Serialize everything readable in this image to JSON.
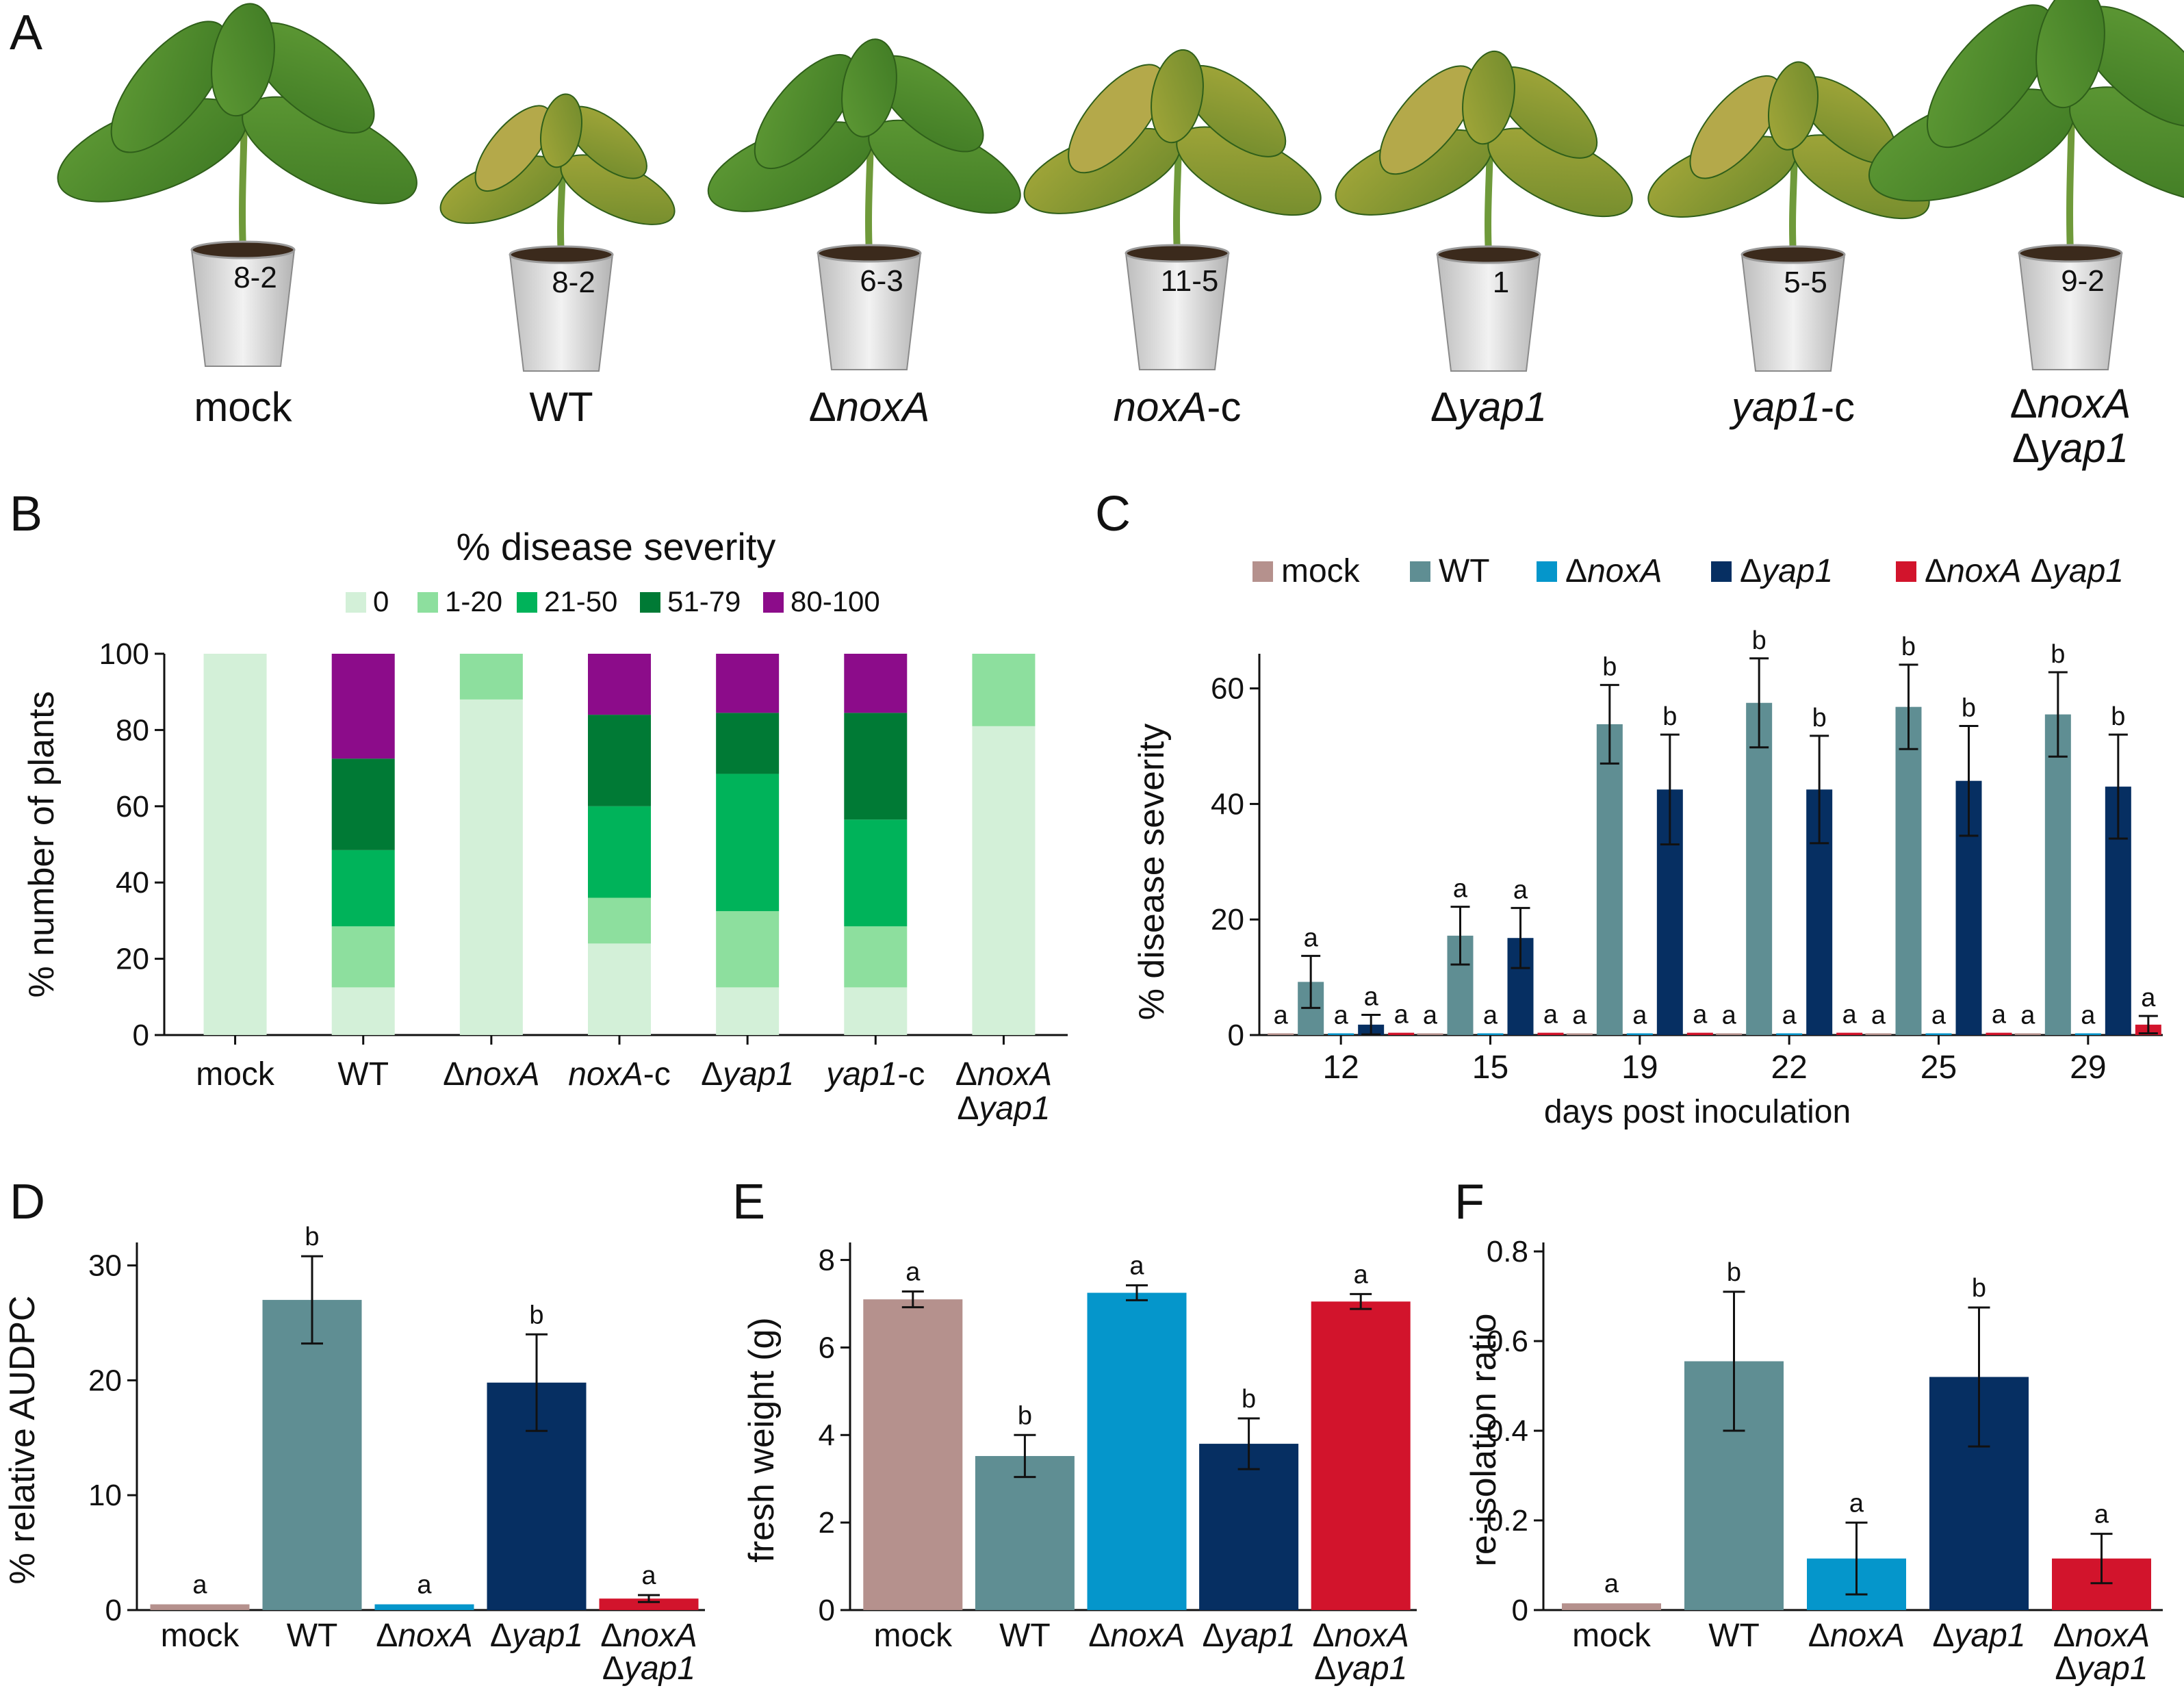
{
  "figure": {
    "panel_letters": [
      "A",
      "B",
      "C",
      "D",
      "E",
      "F"
    ]
  },
  "photo_panel": {
    "plant_labels": [
      {
        "lines": [
          [
            {
              "t": "mock",
              "i": false
            }
          ]
        ]
      },
      {
        "lines": [
          [
            {
              "t": "WT",
              "i": false
            }
          ]
        ]
      },
      {
        "lines": [
          [
            {
              "t": "Δ",
              "i": false
            },
            {
              "t": "noxA",
              "i": true
            }
          ]
        ]
      },
      {
        "lines": [
          [
            {
              "t": "noxA",
              "i": true
            },
            {
              "t": "-c",
              "i": false
            }
          ]
        ]
      },
      {
        "lines": [
          [
            {
              "t": "Δ",
              "i": false
            },
            {
              "t": "yap1",
              "i": true
            }
          ]
        ]
      },
      {
        "lines": [
          [
            {
              "t": "yap1",
              "i": true
            },
            {
              "t": "-c",
              "i": false
            }
          ]
        ]
      },
      {
        "lines": [
          [
            {
              "t": "Δ",
              "i": false
            },
            {
              "t": "noxA",
              "i": true
            }
          ],
          [
            {
              "t": "Δ",
              "i": false
            },
            {
              "t": "yap1",
              "i": true
            }
          ]
        ]
      }
    ],
    "pot_labels": [
      "8-2",
      "8-2",
      "6-3",
      "11-5",
      "1",
      "5-5",
      "9-2"
    ]
  },
  "colors": {
    "mock": "#b5918d",
    "WT": "#5f8e93",
    "noxA": "#0596cb",
    "yap1": "#062f62",
    "double": "#d2142c",
    "sev0": "#d3f0d8",
    "sev1": "#8ddf9e",
    "sev21": "#00b35a",
    "sev51": "#007a35",
    "sev80": "#8c0c8a"
  },
  "chart_data": [
    {
      "id": "B",
      "type": "bar",
      "stacked": true,
      "title": "% disease severity",
      "ylabel": "% number of plants",
      "ylim": [
        0,
        100
      ],
      "yticks": [
        0,
        20,
        40,
        60,
        80,
        100
      ],
      "categories": [
        [
          [
            {
              "t": "mock",
              "i": false
            }
          ]
        ],
        [
          [
            {
              "t": "WT",
              "i": false
            }
          ]
        ],
        [
          [
            {
              "t": "Δ",
              "i": false
            },
            {
              "t": "noxA",
              "i": true
            }
          ]
        ],
        [
          [
            {
              "t": "noxA",
              "i": true
            },
            {
              "t": "-c",
              "i": false
            }
          ]
        ],
        [
          [
            {
              "t": "Δ",
              "i": false
            },
            {
              "t": "yap1",
              "i": true
            }
          ]
        ],
        [
          [
            {
              "t": "yap1",
              "i": true
            },
            {
              "t": "-c",
              "i": false
            }
          ]
        ],
        [
          [
            {
              "t": "Δ",
              "i": false
            },
            {
              "t": "noxA",
              "i": true
            }
          ],
          [
            {
              "t": "Δ",
              "i": false
            },
            {
              "t": "yap1",
              "i": true
            }
          ]
        ]
      ],
      "series": [
        {
          "name": "0",
          "color": "#d3f0d8",
          "values": [
            100,
            12.5,
            88,
            24,
            12.5,
            12.5,
            81
          ]
        },
        {
          "name": "1-20",
          "color": "#8ddf9e",
          "values": [
            0,
            16,
            12,
            12,
            20,
            16,
            19
          ]
        },
        {
          "name": "21-50",
          "color": "#00b35a",
          "values": [
            0,
            20,
            0,
            24,
            36,
            28,
            0
          ]
        },
        {
          "name": "51-79",
          "color": "#007a35",
          "values": [
            0,
            24,
            0,
            24,
            16,
            28,
            0
          ]
        },
        {
          "name": "80-100",
          "color": "#8c0c8a",
          "values": [
            0,
            27.5,
            0,
            16,
            15.5,
            15.5,
            0
          ]
        }
      ]
    },
    {
      "id": "C",
      "type": "bar",
      "xlabel": "days post inoculation",
      "ylabel": "% disease severity",
      "ylim": [
        0,
        66
      ],
      "yticks": [
        0,
        20,
        40,
        60
      ],
      "x": [
        "12",
        "15",
        "19",
        "22",
        "25",
        "29"
      ],
      "legend": [
        [
          {
            "t": "mock",
            "i": false
          }
        ],
        [
          {
            "t": "WT",
            "i": false
          }
        ],
        [
          {
            "t": "Δ",
            "i": false
          },
          {
            "t": "noxA",
            "i": true
          }
        ],
        [
          {
            "t": "Δ",
            "i": false
          },
          {
            "t": "yap1",
            "i": true
          }
        ],
        [
          {
            "t": "Δ",
            "i": false
          },
          {
            "t": "noxA",
            "i": true
          },
          {
            "t": " Δ",
            "i": false
          },
          {
            "t": "yap1",
            "i": true
          }
        ]
      ],
      "series": [
        {
          "name": "mock",
          "color": "#b5918d",
          "values": [
            0.3,
            0.3,
            0.3,
            0.3,
            0.3,
            0.3
          ],
          "err": [
            0,
            0,
            0,
            0,
            0,
            0
          ],
          "letters": [
            "a",
            "a",
            "a",
            "a",
            "a",
            "a"
          ]
        },
        {
          "name": "WT",
          "color": "#5f8e93",
          "values": [
            9.2,
            17.2,
            53.8,
            57.5,
            56.8,
            55.5
          ],
          "err": [
            4.5,
            5.0,
            6.8,
            7.7,
            7.3,
            7.3
          ],
          "letters": [
            "a",
            "a",
            "b",
            "b",
            "b",
            "b"
          ]
        },
        {
          "name": "ΔnoxA",
          "color": "#0596cb",
          "values": [
            0.3,
            0.3,
            0.3,
            0.3,
            0.3,
            0.3
          ],
          "err": [
            0,
            0,
            0,
            0,
            0,
            0
          ],
          "letters": [
            "a",
            "a",
            "a",
            "a",
            "a",
            "a"
          ]
        },
        {
          "name": "Δyap1",
          "color": "#062f62",
          "values": [
            1.8,
            16.8,
            42.5,
            42.5,
            44,
            43
          ],
          "err": [
            1.7,
            5.2,
            9.5,
            9.3,
            9.5,
            9.0
          ],
          "letters": [
            "a",
            "a",
            "b",
            "b",
            "b",
            "b"
          ]
        },
        {
          "name": "ΔnoxA Δyap1",
          "color": "#d2142c",
          "values": [
            0.4,
            0.4,
            0.4,
            0.4,
            0.4,
            1.8
          ],
          "err": [
            0,
            0,
            0,
            0,
            0,
            1.5
          ],
          "letters": [
            "a",
            "a",
            "a",
            "a",
            "a",
            "a"
          ]
        }
      ]
    },
    {
      "id": "D",
      "type": "bar",
      "ylabel": "% relative AUDPC",
      "ylim": [
        0,
        32
      ],
      "yticks": [
        0,
        10,
        20,
        30
      ],
      "categories": [
        [
          [
            {
              "t": "mock",
              "i": false
            }
          ]
        ],
        [
          [
            {
              "t": "WT",
              "i": false
            }
          ]
        ],
        [
          [
            {
              "t": "Δ",
              "i": false
            },
            {
              "t": "noxA",
              "i": true
            }
          ]
        ],
        [
          [
            {
              "t": "Δ",
              "i": false
            },
            {
              "t": "yap1",
              "i": true
            }
          ]
        ],
        [
          [
            {
              "t": "Δ",
              "i": false
            },
            {
              "t": "noxA",
              "i": true
            }
          ],
          [
            {
              "t": "Δ",
              "i": false
            },
            {
              "t": "yap1",
              "i": true
            }
          ]
        ]
      ],
      "colors": [
        "#b5918d",
        "#5f8e93",
        "#0596cb",
        "#062f62",
        "#d2142c"
      ],
      "values": [
        0.5,
        27,
        0.5,
        19.8,
        1.0
      ],
      "err": [
        0,
        3.8,
        0,
        4.2,
        0.3
      ],
      "letters": [
        "a",
        "b",
        "a",
        "b",
        "a"
      ]
    },
    {
      "id": "E",
      "type": "bar",
      "ylabel": "fresh weight (g)",
      "ylim": [
        0,
        8.4
      ],
      "yticks": [
        0,
        2,
        4,
        6,
        8
      ],
      "categories": [
        [
          [
            {
              "t": "mock",
              "i": false
            }
          ]
        ],
        [
          [
            {
              "t": "WT",
              "i": false
            }
          ]
        ],
        [
          [
            {
              "t": "Δ",
              "i": false
            },
            {
              "t": "noxA",
              "i": true
            }
          ]
        ],
        [
          [
            {
              "t": "Δ",
              "i": false
            },
            {
              "t": "yap1",
              "i": true
            }
          ]
        ],
        [
          [
            {
              "t": "Δ",
              "i": false
            },
            {
              "t": "noxA",
              "i": true
            }
          ],
          [
            {
              "t": "Δ",
              "i": false
            },
            {
              "t": "yap1",
              "i": true
            }
          ]
        ]
      ],
      "colors": [
        "#b5918d",
        "#5f8e93",
        "#0596cb",
        "#062f62",
        "#d2142c"
      ],
      "values": [
        7.1,
        3.52,
        7.25,
        3.8,
        7.05
      ],
      "err": [
        0.18,
        0.48,
        0.17,
        0.58,
        0.17
      ],
      "letters": [
        "a",
        "b",
        "a",
        "b",
        "a"
      ]
    },
    {
      "id": "F",
      "type": "bar",
      "ylabel": "re-isolation ratio",
      "ylim": [
        0,
        0.82
      ],
      "yticks": [
        "0",
        "0.2",
        "0.4",
        "0.6",
        "0.8"
      ],
      "categories": [
        [
          [
            {
              "t": "mock",
              "i": false
            }
          ]
        ],
        [
          [
            {
              "t": "WT",
              "i": false
            }
          ]
        ],
        [
          [
            {
              "t": "Δ",
              "i": false
            },
            {
              "t": "noxA",
              "i": true
            }
          ]
        ],
        [
          [
            {
              "t": "Δ",
              "i": false
            },
            {
              "t": "yap1",
              "i": true
            }
          ]
        ],
        [
          [
            {
              "t": "Δ",
              "i": false
            },
            {
              "t": "noxA",
              "i": true
            }
          ],
          [
            {
              "t": "Δ",
              "i": false
            },
            {
              "t": "yap1",
              "i": true
            }
          ]
        ]
      ],
      "colors": [
        "#b5918d",
        "#5f8e93",
        "#0596cb",
        "#062f62",
        "#d2142c"
      ],
      "values": [
        0.015,
        0.555,
        0.115,
        0.52,
        0.115
      ],
      "err": [
        0,
        0.155,
        0.08,
        0.155,
        0.055
      ],
      "letters": [
        "a",
        "b",
        "a",
        "b",
        "a"
      ]
    }
  ]
}
